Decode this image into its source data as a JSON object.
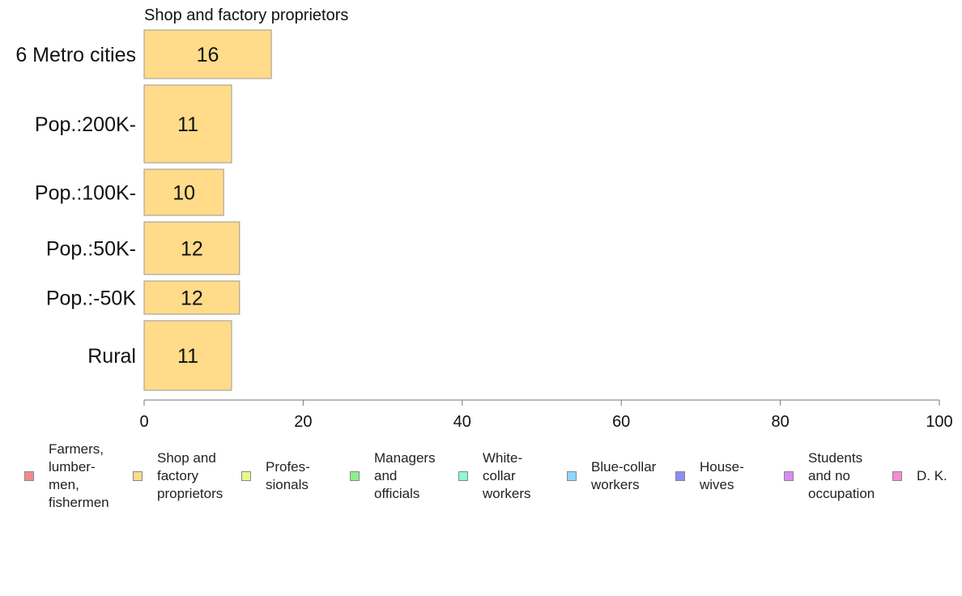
{
  "chart_data": {
    "type": "bar",
    "orientation": "horizontal",
    "title": "Shop and factory proprietors",
    "categories": [
      "6 Metro cities",
      "Pop.:200K-",
      "Pop.:100K-",
      "Pop.:50K-",
      "Pop.:-50K",
      "Rural"
    ],
    "values": [
      16,
      11,
      10,
      12,
      12,
      11
    ],
    "data_labels": [
      "16",
      "11",
      "10",
      "12",
      "12",
      "11"
    ],
    "xlim": [
      0,
      100
    ],
    "xticks": [
      "0",
      "20",
      "40",
      "60",
      "80",
      "100"
    ],
    "xlabel": "",
    "ylabel": "",
    "grid": false,
    "legend_placement": "bottom",
    "bar_color": "#FFDB8A",
    "bar_edge_color": "#999999",
    "legend": [
      {
        "label": "Farmers,\nlumber-\nmen,\nfishermen",
        "color": "#F08C8C"
      },
      {
        "label": "Shop and\nfactory\nproprietors",
        "color": "#FFDB8A"
      },
      {
        "label": "Profes-\nsionals",
        "color": "#E6FA8C"
      },
      {
        "label": "Managers\nand\nofficials",
        "color": "#8CF08C"
      },
      {
        "label": "White-\ncollar\nworkers",
        "color": "#8CFAD2"
      },
      {
        "label": "Blue-collar\nworkers",
        "color": "#8CD7FA"
      },
      {
        "label": "House-\nwives",
        "color": "#8C8CF5"
      },
      {
        "label": "Students\nand no\noccupation",
        "color": "#D78CF5"
      },
      {
        "label": "D. K.",
        "color": "#F58CD2"
      }
    ]
  }
}
